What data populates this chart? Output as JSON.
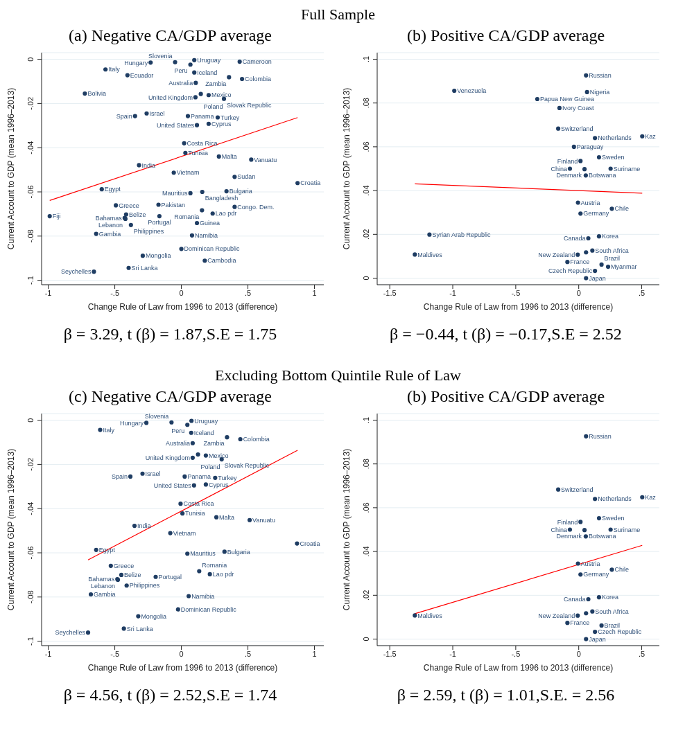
{
  "chart_data": [
    {
      "type": "scatter",
      "title": "(a) Negative CA/GDP average",
      "xlabel": "Change Rule of Law from 1996 to 2013 (difference)",
      "ylabel": "Current Account to GDP (mean 1996–2013)",
      "annotations": [
        "Full Sample",
        "β = 3.29, t (β) = 1.87,S.E = 1.75"
      ],
      "xlim": [
        -1.05,
        1.07
      ],
      "ylim": [
        -0.102,
        0.003
      ],
      "xticks": [
        {
          "value": -1,
          "label": "-1"
        },
        {
          "value": -0.5,
          "label": "-.5"
        },
        {
          "value": 0,
          "label": "0"
        },
        {
          "value": 0.5,
          "label": ".5"
        },
        {
          "value": 1,
          "label": "1"
        }
      ],
      "yticks": [
        {
          "value": -0.1,
          "label": "-.1"
        },
        {
          "value": -0.08,
          "label": "-.08"
        },
        {
          "value": -0.06,
          "label": "-.06"
        },
        {
          "value": -0.04,
          "label": "-.04"
        },
        {
          "value": -0.02,
          "label": "-.02"
        },
        {
          "value": 0,
          "label": "0"
        }
      ],
      "grid": "y",
      "series": [
        {
          "marker": "circle",
          "color": "#1f3d63",
          "x": [
            -0.231,
            -0.047,
            0.097,
            0.068,
            0.438,
            -0.57,
            -0.405,
            0.097,
            0.358,
            0.456,
            0.108,
            -0.725,
            0.146,
            0.205,
            0.106,
            0.32,
            -0.261,
            -0.348,
            0.049,
            0.273,
            0.205,
            0.117,
            0.021,
            0.03,
            0.282,
            0.525,
            -0.318,
            -0.057,
            0.4,
            0.873,
            -0.598,
            0.068,
            0.157,
            0.339,
            -0.492,
            -0.172,
            0.4,
            0.155,
            0.235,
            -0.989,
            -0.415,
            -0.165,
            -0.426,
            -0.42,
            -0.379,
            0.117,
            -0.64,
            0.08,
            0.0,
            -0.29,
            0.176,
            -0.396,
            -0.657
          ],
          "values": [
            -0.0015,
            -0.0013,
            -0.0004,
            -0.0024,
            -0.0011,
            -0.0046,
            -0.0072,
            -0.006,
            -0.0081,
            -0.0089,
            -0.0107,
            -0.0155,
            -0.0157,
            -0.0162,
            -0.0172,
            -0.0179,
            -0.0245,
            -0.0257,
            -0.0257,
            -0.0263,
            -0.0292,
            -0.0298,
            -0.038,
            -0.0424,
            -0.044,
            -0.0454,
            -0.0479,
            -0.0513,
            -0.0532,
            -0.056,
            -0.0588,
            -0.0606,
            -0.06,
            -0.0597,
            -0.0661,
            -0.0658,
            -0.0668,
            -0.0683,
            -0.0698,
            -0.071,
            -0.0702,
            -0.071,
            -0.0718,
            -0.0722,
            -0.075,
            -0.0741,
            -0.079,
            -0.0797,
            -0.0858,
            -0.0889,
            -0.0911,
            -0.0944,
            -0.0961
          ],
          "value_labels": [
            "Hungary",
            "Slovenia",
            "Uruguay",
            "Peru",
            "Cameroon",
            "Italy",
            "Ecuador",
            "Iceland",
            "Zambia",
            "Colombia",
            "Australia",
            "Bolivia",
            "Poland",
            "Mexico",
            "United Kingdom",
            "Slovak Republic",
            "Israel",
            "Spain",
            "Panama",
            "Turkey",
            "Cyprus",
            "United States",
            "Costa Rica",
            "Tunisia",
            "Malta",
            "Vanuatu",
            "India",
            "Vietnam",
            "Sudan",
            "Croatia",
            "Egypt",
            "Mauritius",
            "Bangladesh",
            "Bulgaria",
            "Greece",
            "Pakistan",
            "Congo. Dem.",
            "Romania",
            "Lao pdr",
            "Fiji",
            "Belize",
            "Portugal",
            "Bahamas",
            "Lebanon",
            "Philippines",
            "Guinea",
            "Gambia",
            "Namibia",
            "Dominican Republic",
            "Mongolia",
            "Cambodia",
            "Sri Lanka",
            "Seychelles"
          ]
        },
        {
          "type": "line",
          "color": "#ff0000",
          "x": [
            -0.989,
            0.873
          ],
          "values": [
            -0.0639,
            -0.0264
          ]
        }
      ]
    },
    {
      "type": "scatter",
      "title": "(b) Positive CA/GDP average",
      "xlabel": "Change Rule of Law from 1996 to 2013 (difference)",
      "ylabel": "Current Account to GDP (mean 1996–2013)",
      "annotations": [
        "β = −0.44, t (β) = −0.17,S.E = 2.52"
      ],
      "xlim": [
        -1.6,
        0.64
      ],
      "ylim": [
        -0.003,
        0.103
      ],
      "xticks": [
        {
          "value": -1.5,
          "label": "-1.5"
        },
        {
          "value": -1,
          "label": "-1"
        },
        {
          "value": -0.5,
          "label": "-.5"
        },
        {
          "value": 0,
          "label": "0"
        },
        {
          "value": 0.5,
          "label": ".5"
        }
      ],
      "yticks": [
        {
          "value": 0,
          "label": "0"
        },
        {
          "value": 0.02,
          "label": ".02"
        },
        {
          "value": 0.04,
          "label": ".04"
        },
        {
          "value": 0.06,
          "label": ".06"
        },
        {
          "value": 0.08,
          "label": ".08"
        },
        {
          "value": 0.1,
          "label": ".1"
        }
      ],
      "grid": "y",
      "series": [
        {
          "marker": "circle",
          "color": "#1f3d63",
          "x": [
            0.058,
            -0.988,
            0.066,
            -0.329,
            -0.153,
            -0.163,
            0.129,
            0.504,
            -0.038,
            0.161,
            0.014,
            -0.07,
            0.046,
            0.253,
            0.056,
            -0.006,
            0.263,
            0.014,
            -1.185,
            0.161,
            0.076,
            -1.301,
            0.108,
            0.058,
            -0.008,
            -0.09,
            0.181,
            0.233,
            0.129,
            0.058
          ],
          "values": [
            0.0926,
            0.0856,
            0.085,
            0.0818,
            0.0777,
            0.0683,
            0.064,
            0.0648,
            0.06,
            0.0552,
            0.0535,
            0.05,
            0.0498,
            0.05,
            0.0469,
            0.0345,
            0.0317,
            0.0295,
            0.0199,
            0.0191,
            0.0182,
            0.0108,
            0.0126,
            0.0118,
            0.0107,
            0.0074,
            0.0062,
            0.0052,
            0.0033,
            0.0
          ],
          "value_labels": [
            "Russian",
            "Venezuela",
            "Nigeria",
            "Papua New Guinea",
            "Ivory Coast",
            "Switzerland",
            "Netherlands",
            "Kaz",
            "Paraguay",
            "Sweden",
            "Finland",
            "China",
            "Denmark",
            "Suriname",
            "Botswana",
            "Austria",
            "Chile",
            "Germany",
            "Syrian Arab Republic",
            "Korea",
            "Canada",
            "Maldives",
            "South Africa",
            null,
            "New Zealand",
            "France",
            "Brazil",
            "Myanmar",
            "Czech Republic",
            "Japan"
          ]
        },
        {
          "type": "line",
          "color": "#ff0000",
          "x": [
            -1.301,
            0.504
          ],
          "values": [
            0.0431,
            0.0388
          ]
        }
      ]
    },
    {
      "type": "scatter",
      "title": "(c) Negative CA/GDP average",
      "xlabel": "Change Rule of Law from 1996 to 2013 (difference)",
      "ylabel": "Current Account to GDP (mean 1996–2013)",
      "annotations": [
        "Excluding Bottom Quintile Rule of Law",
        "β = 4.56, t (β) = 2.52,S.E = 1.74"
      ],
      "xlim": [
        -1.05,
        1.07
      ],
      "ylim": [
        -0.102,
        0.003
      ],
      "xticks": [
        {
          "value": -1,
          "label": "-1"
        },
        {
          "value": -0.5,
          "label": "-.5"
        },
        {
          "value": 0,
          "label": "0"
        },
        {
          "value": 0.5,
          "label": ".5"
        },
        {
          "value": 1,
          "label": "1"
        }
      ],
      "yticks": [
        {
          "value": -0.1,
          "label": "-.1"
        },
        {
          "value": -0.08,
          "label": "-.08"
        },
        {
          "value": -0.06,
          "label": "-.06"
        },
        {
          "value": -0.04,
          "label": "-.04"
        },
        {
          "value": -0.02,
          "label": "-.02"
        },
        {
          "value": 0,
          "label": "0"
        }
      ],
      "grid": "y",
      "series": [
        {
          "marker": "circle",
          "color": "#1f3d63",
          "x": [
            -0.263,
            -0.074,
            0.076,
            0.045,
            -0.61,
            0.074,
            0.343,
            0.443,
            0.085,
            0.125,
            0.184,
            0.085,
            0.303,
            -0.292,
            -0.383,
            0.025,
            0.254,
            0.184,
            0.095,
            -0.006,
            0.008,
            0.263,
            0.513,
            -0.352,
            -0.083,
            0.869,
            -0.64,
            0.045,
            0.324,
            -0.53,
            -0.451,
            -0.481,
            -0.477,
            -0.193,
            0.134,
            0.214,
            -0.411,
            -0.68,
            0.055,
            -0.025,
            -0.324,
            -0.432,
            -0.701
          ],
          "values": [
            -0.0012,
            -0.001,
            -0.0003,
            -0.0021,
            -0.0044,
            -0.0057,
            -0.0077,
            -0.0086,
            -0.0104,
            -0.0155,
            -0.016,
            -0.017,
            -0.0177,
            -0.0242,
            -0.0255,
            -0.0255,
            -0.0261,
            -0.0291,
            -0.0295,
            -0.0378,
            -0.0422,
            -0.0439,
            -0.0452,
            -0.0478,
            -0.0511,
            -0.0558,
            -0.0587,
            -0.0604,
            -0.0595,
            -0.0659,
            -0.07,
            -0.0719,
            -0.0722,
            -0.0709,
            -0.0683,
            -0.0697,
            -0.0748,
            -0.0788,
            -0.0796,
            -0.0856,
            -0.0887,
            -0.0943,
            -0.0961
          ],
          "value_labels": [
            "Hungary",
            "Slovenia",
            "Uruguay",
            "Peru",
            "Italy",
            "Iceland",
            "Zambia",
            "Colombia",
            "Australia",
            "Poland",
            "Mexico",
            "United Kingdom",
            "Slovak Republic",
            "Israel",
            "Spain",
            "Panama",
            "Turkey",
            "Cyprus",
            "United States",
            "Costa Rica",
            "Tunisia",
            "Malta",
            "Vanuatu",
            "India",
            "Vietnam",
            "Croatia",
            "Egypt",
            "Mauritius",
            "Bulgaria",
            "Greece",
            "Belize",
            "Bahamas",
            "Lebanon",
            "Portugal",
            "Romania",
            "Lao pdr",
            "Philippines",
            "Gambia",
            "Namibia",
            "Dominican Republic",
            "Mongolia",
            "Sri Lanka",
            "Seychelles"
          ]
        },
        {
          "type": "line",
          "color": "#ff0000",
          "x": [
            -0.701,
            0.873
          ],
          "values": [
            -0.0632,
            -0.0136
          ]
        }
      ]
    },
    {
      "type": "scatter",
      "title": "(b) Positive CA/GDP average",
      "xlabel": "Change Rule of Law from 1996 to 2013 (difference)",
      "ylabel": "Current Account to GDP (mean 1996–2013)",
      "annotations": [
        "β = 2.59, t (β) = 1.01,S.E. = 2.56"
      ],
      "xlim": [
        -1.6,
        0.64
      ],
      "ylim": [
        -0.003,
        0.103
      ],
      "xticks": [
        {
          "value": -1.5,
          "label": "-1.5"
        },
        {
          "value": -1,
          "label": "-1"
        },
        {
          "value": -0.5,
          "label": "-.5"
        },
        {
          "value": 0,
          "label": "0"
        },
        {
          "value": 0.5,
          "label": ".5"
        }
      ],
      "yticks": [
        {
          "value": 0,
          "label": "0"
        },
        {
          "value": 0.02,
          "label": ".02"
        },
        {
          "value": 0.04,
          "label": ".04"
        },
        {
          "value": 0.06,
          "label": ".06"
        },
        {
          "value": 0.08,
          "label": ".08"
        },
        {
          "value": 0.1,
          "label": ".1"
        }
      ],
      "grid": "y",
      "series": [
        {
          "marker": "circle",
          "color": "#1f3d63",
          "x": [
            0.058,
            -0.163,
            0.129,
            0.504,
            0.161,
            0.014,
            -0.07,
            0.046,
            0.253,
            0.056,
            -0.006,
            0.263,
            0.014,
            0.161,
            0.076,
            -1.301,
            0.108,
            0.058,
            -0.008,
            -0.09,
            0.181,
            0.129,
            0.058
          ],
          "values": [
            0.0926,
            0.0683,
            0.064,
            0.0648,
            0.0552,
            0.0535,
            0.05,
            0.0498,
            0.05,
            0.0469,
            0.0345,
            0.0317,
            0.0295,
            0.0191,
            0.0182,
            0.0108,
            0.0126,
            0.0118,
            0.0107,
            0.0074,
            0.0062,
            0.0033,
            0.0
          ],
          "value_labels": [
            "Russian",
            "Switzerland",
            "Netherlands",
            "Kaz",
            "Sweden",
            "Finland",
            "China",
            "Denmark",
            "Suriname",
            "Botswana",
            "Austria",
            "Chile",
            "Germany",
            "Korea",
            "Canada",
            "Maldives",
            "South Africa",
            null,
            "New Zealand",
            "France",
            "Brazil",
            "Czech Republic",
            "Japan"
          ]
        },
        {
          "type": "line",
          "color": "#ff0000",
          "x": [
            -1.301,
            0.504
          ],
          "values": [
            0.0116,
            0.0428
          ]
        }
      ]
    }
  ]
}
